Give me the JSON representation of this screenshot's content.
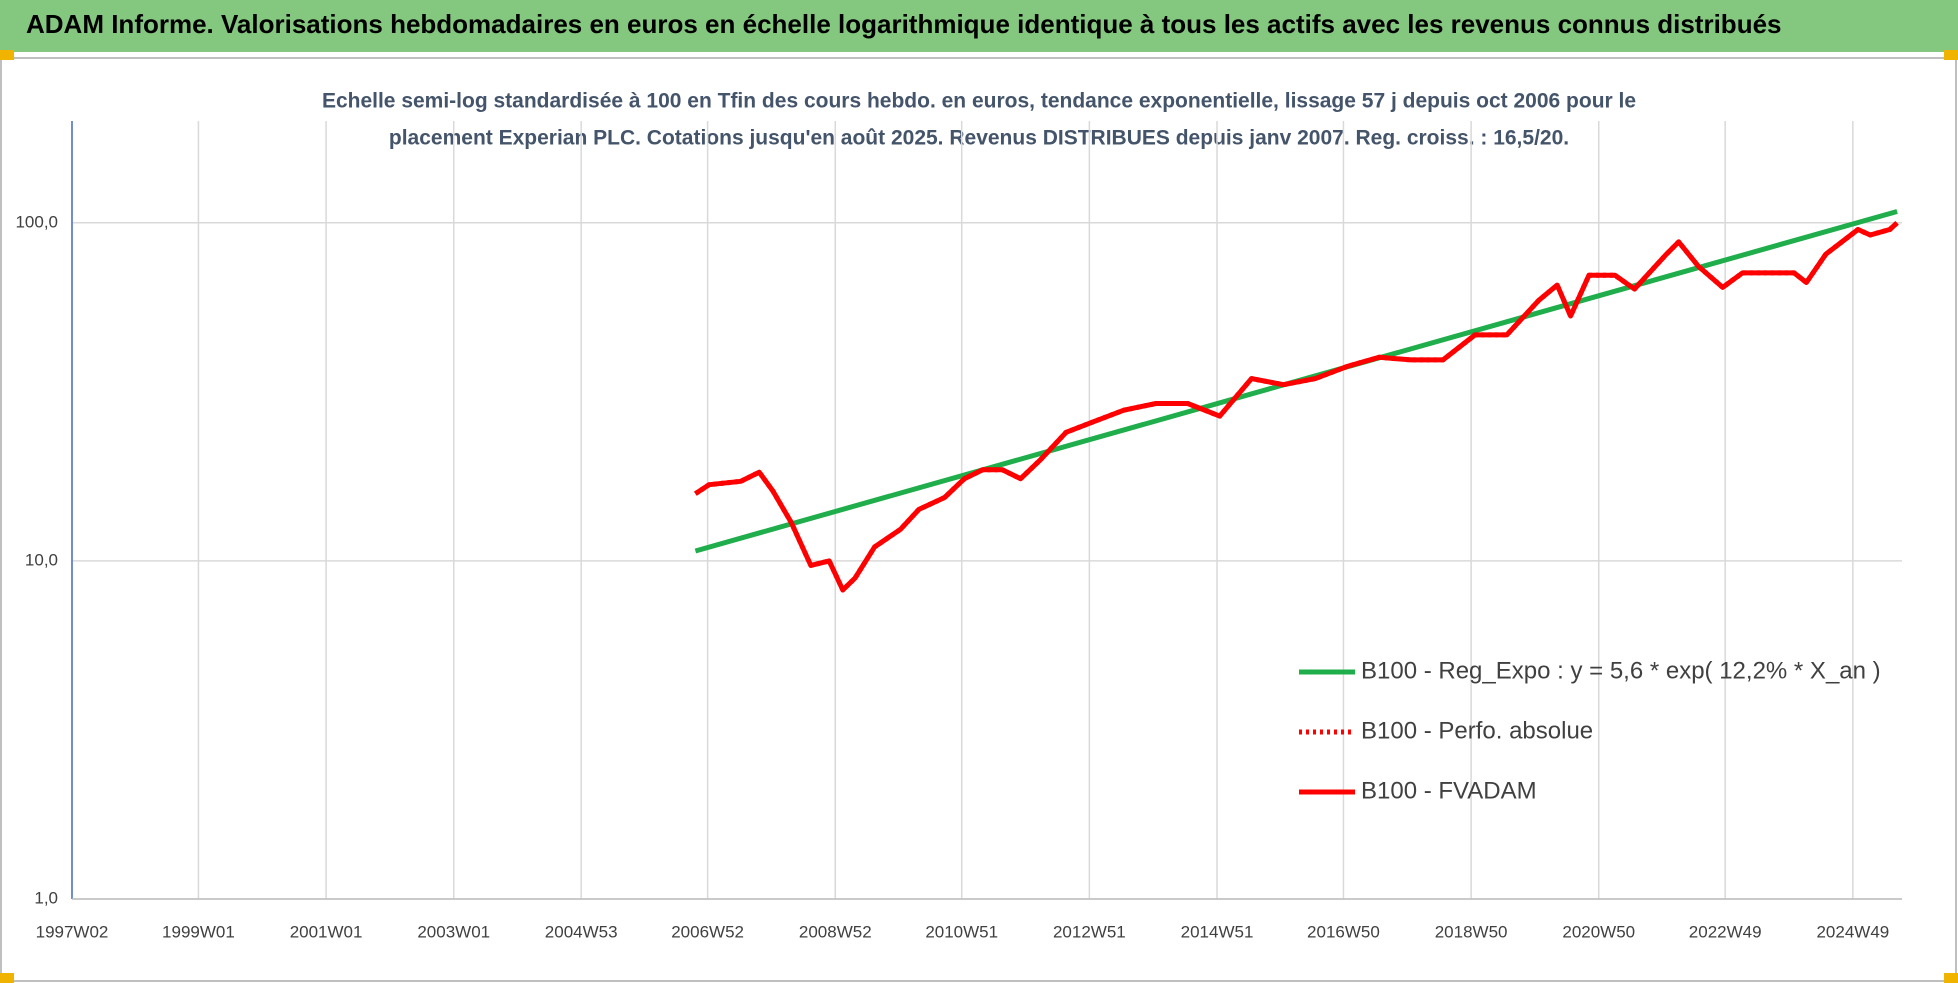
{
  "chart_data": {
    "type": "line",
    "title": "ADAM Informe. Valorisations hebdomadaires en euros en échelle logarithmique identique à tous les actifs avec les revenus connus distribués",
    "subtitle": [
      "Echelle semi-log standardisée à 100 en Tfin des cours hebdo. en euros, tendance exponentielle, lissage 57 j depuis oct 2006 pour le",
      "placement Experian PLC. Cotations jusqu'en août 2025.  Revenus DISTRIBUES depuis janv 2007. Reg. croiss. : 16,5/20."
    ],
    "log_y": true,
    "grid": true,
    "legend": "right",
    "xlim": [
      "1997W02",
      "2025W37"
    ],
    "xticks": [
      "1997W02",
      "1999W01",
      "2001W01",
      "2003W01",
      "2004W53",
      "2006W52",
      "2008W52",
      "2010W51",
      "2012W51",
      "2014W51",
      "2016W50",
      "2018W50",
      "2020W50",
      "2022W49",
      "2024W49"
    ],
    "ylim": [
      1,
      200
    ],
    "yticks": [
      {
        "value": 1,
        "label": "1,0"
      },
      {
        "value": 10,
        "label": "10,0"
      },
      {
        "value": 100,
        "label": "100,0"
      }
    ],
    "x": [
      "2006W42",
      "2007W01",
      "2007W27",
      "2007W42",
      "2008W01",
      "2008W16",
      "2008W32",
      "2008W47",
      "2009W06",
      "2009W16",
      "2009W32",
      "2010W01",
      "2010W16",
      "2010W37",
      "2011W01",
      "2011W16",
      "2011W32",
      "2011W47",
      "2012W11",
      "2012W32",
      "2013W01",
      "2013W27",
      "2014W01",
      "2014W27",
      "2015W01",
      "2015W27",
      "2016W01",
      "2016W27",
      "2017W01",
      "2017W27",
      "2018W01",
      "2018W27",
      "2019W01",
      "2019W27",
      "2020W01",
      "2020W16",
      "2020W27",
      "2020W42",
      "2021W11",
      "2021W27",
      "2022W01",
      "2022W11",
      "2022W27",
      "2022W47",
      "2023W11",
      "2023W27",
      "2024W01",
      "2024W11",
      "2024W27",
      "2025W01",
      "2025W11",
      "2025W27",
      "2025W33"
    ],
    "series": [
      {
        "name": "B100 - Reg_Expo : y = 5,6 * exp( 12,2% *  X_an )",
        "color": "#1fae4b",
        "style": "solid",
        "x": [
          "2006W42",
          "2025W33"
        ],
        "values": [
          10.7,
          108
        ]
      },
      {
        "name": "B100 - Perfo. absolue",
        "color": "#ff0000",
        "style": "dotted",
        "values": [
          15.8,
          16.8,
          17.2,
          18.3,
          16.1,
          13.0,
          9.7,
          10.0,
          8.2,
          8.9,
          11.0,
          12.4,
          14.2,
          15.4,
          17.5,
          18.6,
          18.6,
          17.5,
          19.9,
          24.0,
          25.7,
          27.9,
          29.2,
          29.2,
          26.8,
          34.6,
          33.2,
          34.6,
          37.6,
          40.0,
          39.3,
          39.3,
          46.6,
          46.6,
          59.0,
          65.4,
          53.0,
          70.0,
          70.0,
          63.7,
          80.8,
          87.8,
          74.4,
          64.4,
          71.1,
          71.1,
          71.1,
          66.6,
          80.8,
          95.5,
          92.0,
          95.5,
          100
        ]
      },
      {
        "name": "B100 - FVADAM",
        "color": "#ff0000",
        "style": "solid",
        "values": [
          15.8,
          16.8,
          17.2,
          18.3,
          16.1,
          13.0,
          9.7,
          10.0,
          8.2,
          8.9,
          11.0,
          12.4,
          14.2,
          15.4,
          17.5,
          18.6,
          18.6,
          17.5,
          19.9,
          24.0,
          25.7,
          27.9,
          29.2,
          29.2,
          26.8,
          34.6,
          33.2,
          34.6,
          37.6,
          40.0,
          39.3,
          39.3,
          46.6,
          46.6,
          59.0,
          65.4,
          53.0,
          70.0,
          70.0,
          63.7,
          80.8,
          87.8,
          74.4,
          64.4,
          71.1,
          71.1,
          71.1,
          66.6,
          80.8,
          95.5,
          92.0,
          95.5,
          100
        ]
      }
    ]
  }
}
